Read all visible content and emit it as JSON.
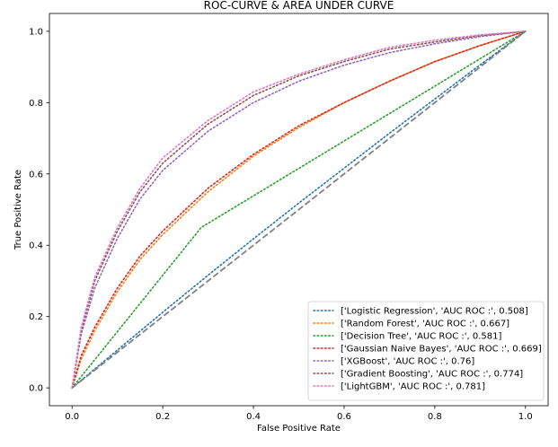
{
  "chart_data": {
    "type": "line",
    "title": "ROC-CURVE & AREA UNDER CURVE",
    "xlabel": "False Positive Rate",
    "ylabel": "True Positive Rate",
    "xlim": [
      -0.05,
      1.05
    ],
    "ylim": [
      -0.05,
      1.05
    ],
    "xticks": [
      "0.0",
      "0.2",
      "0.4",
      "0.6",
      "0.8",
      "1.0"
    ],
    "yticks": [
      "0.0",
      "0.2",
      "0.4",
      "0.6",
      "0.8",
      "1.0"
    ],
    "grid": false,
    "legend_position": "lower-right",
    "reference_line": {
      "x": [
        0,
        1
      ],
      "y": [
        0,
        1
      ],
      "color": "#808080",
      "style": "dashed"
    },
    "series": [
      {
        "name": "['Logistic Regression', 'AUC ROC :', 0.508]",
        "color": "#1f77b4",
        "x": [
          0,
          0.1,
          0.2,
          0.3,
          0.4,
          0.5,
          0.6,
          0.7,
          0.8,
          0.9,
          1.0
        ],
        "y": [
          0,
          0.106,
          0.212,
          0.316,
          0.418,
          0.518,
          0.616,
          0.714,
          0.81,
          0.906,
          1.0
        ]
      },
      {
        "name": "['Random Forest', 'AUC ROC :', 0.667]",
        "color": "#ff7f0e",
        "x": [
          0,
          0.02,
          0.05,
          0.1,
          0.15,
          0.2,
          0.3,
          0.4,
          0.5,
          0.6,
          0.7,
          0.8,
          0.9,
          1.0
        ],
        "y": [
          0,
          0.08,
          0.16,
          0.27,
          0.36,
          0.43,
          0.55,
          0.65,
          0.73,
          0.8,
          0.86,
          0.915,
          0.96,
          1.0
        ]
      },
      {
        "name": "['Decision Tree', 'AUC ROC :', 0.581]",
        "color": "#2ca02c",
        "x": [
          0,
          0.285,
          1.0
        ],
        "y": [
          0,
          0.45,
          1.0
        ]
      },
      {
        "name": "['Gaussian Naive Bayes', 'AUC ROC :', 0.669]",
        "color": "#d62728",
        "x": [
          0,
          0.02,
          0.05,
          0.1,
          0.15,
          0.2,
          0.3,
          0.4,
          0.5,
          0.6,
          0.7,
          0.8,
          0.9,
          1.0
        ],
        "y": [
          0,
          0.09,
          0.17,
          0.28,
          0.37,
          0.44,
          0.56,
          0.655,
          0.735,
          0.8,
          0.86,
          0.915,
          0.96,
          1.0
        ]
      },
      {
        "name": "['XGBoost', 'AUC ROC :', 0.76]",
        "color": "#9467bd",
        "x": [
          0,
          0.02,
          0.05,
          0.1,
          0.15,
          0.2,
          0.3,
          0.4,
          0.5,
          0.6,
          0.7,
          0.8,
          0.9,
          1.0
        ],
        "y": [
          0,
          0.15,
          0.28,
          0.42,
          0.53,
          0.61,
          0.72,
          0.8,
          0.86,
          0.905,
          0.94,
          0.965,
          0.985,
          1.0
        ]
      },
      {
        "name": "['Gradient Boosting', 'AUC ROC :', 0.774]",
        "color": "#8c564b",
        "x": [
          0,
          0.02,
          0.05,
          0.1,
          0.15,
          0.2,
          0.3,
          0.4,
          0.5,
          0.6,
          0.7,
          0.8,
          0.9,
          1.0
        ],
        "y": [
          0,
          0.16,
          0.3,
          0.44,
          0.55,
          0.63,
          0.74,
          0.82,
          0.875,
          0.915,
          0.95,
          0.97,
          0.988,
          1.0
        ]
      },
      {
        "name": "['LightGBM', 'AUC ROC :', 0.781]",
        "color": "#e377c2",
        "x": [
          0,
          0.02,
          0.05,
          0.1,
          0.15,
          0.2,
          0.3,
          0.4,
          0.5,
          0.6,
          0.7,
          0.8,
          0.9,
          1.0
        ],
        "y": [
          0,
          0.17,
          0.31,
          0.45,
          0.56,
          0.645,
          0.75,
          0.83,
          0.88,
          0.92,
          0.955,
          0.975,
          0.99,
          1.0
        ]
      }
    ]
  }
}
